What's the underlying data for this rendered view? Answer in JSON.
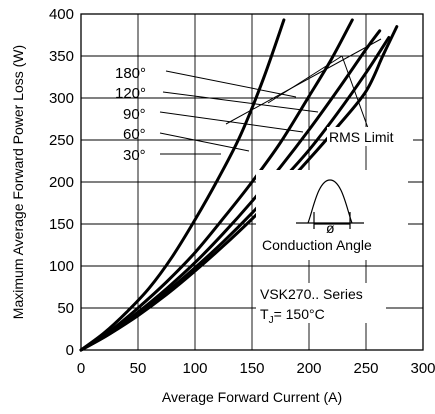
{
  "chart_data": {
    "type": "line",
    "xlabel": "Average Forward Current (A)",
    "ylabel": "Maximum Average Forward Power Loss (W)",
    "xlim": [
      0,
      300
    ],
    "ylim": [
      0,
      400
    ],
    "xticks": [
      0,
      50,
      100,
      150,
      200,
      250,
      300
    ],
    "yticks": [
      0,
      50,
      100,
      150,
      200,
      250,
      300,
      350,
      400
    ],
    "grid": true,
    "series": [
      {
        "name": "180°",
        "x": [
          0,
          20,
          40,
          60,
          80,
          100,
          120,
          140,
          160,
          178
        ],
        "y": [
          0,
          20,
          45,
          74,
          111,
          155,
          203,
          256,
          323,
          393
        ]
      },
      {
        "name": "120°",
        "x": [
          0,
          25,
          50,
          75,
          100,
          125,
          150,
          175,
          200,
          220,
          238
        ],
        "y": [
          0,
          22,
          50,
          81,
          116,
          157,
          200,
          247,
          302,
          347,
          393
        ]
      },
      {
        "name": "90°",
        "x": [
          0,
          25,
          50,
          75,
          100,
          125,
          150,
          175,
          200,
          225,
          250,
          262
        ],
        "y": [
          0,
          20,
          45,
          73,
          104,
          139,
          177,
          218,
          262,
          309,
          358,
          380
        ]
      },
      {
        "name": "60°",
        "x": [
          0,
          25,
          50,
          75,
          100,
          125,
          150,
          175,
          200,
          225,
          250,
          270
        ],
        "y": [
          0,
          19,
          43,
          69,
          98,
          129,
          163,
          200,
          238,
          282,
          330,
          372
        ]
      },
      {
        "name": "30°",
        "x": [
          0,
          25,
          50,
          75,
          100,
          125,
          150,
          175,
          200,
          225,
          250,
          265,
          277
        ],
        "y": [
          0,
          19,
          41,
          66,
          94,
          124,
          156,
          190,
          227,
          266,
          308,
          351,
          385
        ]
      }
    ],
    "annotations": [
      "RMS Limit",
      "Conduction Angle",
      "VSK270.. Series",
      "TJ = 150°C"
    ]
  },
  "labels": {
    "angle_180": "180°",
    "angle_120": "120°",
    "angle_90": "90°",
    "angle_60": "60°",
    "angle_30": "30°",
    "rms_limit": "RMS Limit",
    "conduction_angle": "Conduction Angle",
    "phi": "ø",
    "series_line": "VSK270.. Series",
    "tj_prefix": "T",
    "tj_sub": "J",
    "tj_value": "= 150°C"
  }
}
